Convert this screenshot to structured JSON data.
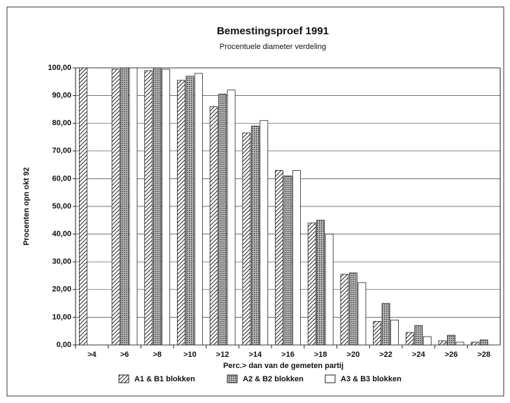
{
  "chart_data": {
    "type": "bar",
    "title": "Bemestingsproef 1991",
    "subtitle": "Procentuele diameter verdeling",
    "y_label": "Procenten opn okt 92",
    "x_label": "Perc.> dan van de gemeten partij",
    "categories": [
      ">4",
      ">6",
      ">8",
      ">10",
      ">12",
      ">14",
      ">16",
      ">18",
      ">20",
      ">22",
      ">24",
      ">26",
      ">28"
    ],
    "series": [
      {
        "name": "A1 & B1 blokken",
        "color": "#222222",
        "pattern": "hatch",
        "values": [
          100,
          99.5,
          99,
          95.5,
          86,
          76.5,
          63,
          44,
          25.5,
          8.5,
          4.5,
          1.5,
          1
        ]
      },
      {
        "name": "A2 & B2 blokken",
        "color": "#222222",
        "pattern": "dots",
        "values": [
          null,
          100,
          100,
          97,
          90.5,
          79,
          61,
          45,
          26,
          15,
          7,
          3.5,
          1.8
        ]
      },
      {
        "name": "A3 & B3 blokken",
        "color": "#222222",
        "pattern": "none",
        "values": [
          null,
          100,
          99.5,
          98,
          92,
          81,
          63,
          40,
          22.5,
          9,
          3,
          1,
          null
        ]
      }
    ],
    "ylim": [
      0,
      100
    ],
    "yticks": [
      {
        "value": 0,
        "label": "0,00"
      },
      {
        "value": 10,
        "label": "10,00"
      },
      {
        "value": 20,
        "label": "20,00"
      },
      {
        "value": 30,
        "label": "30,00"
      },
      {
        "value": 40,
        "label": "40,00"
      },
      {
        "value": 50,
        "label": "50,00"
      },
      {
        "value": 60,
        "label": "60,00"
      },
      {
        "value": 70,
        "label": "70,00"
      },
      {
        "value": 80,
        "label": "80,00"
      },
      {
        "value": 90,
        "label": "90,00"
      },
      {
        "value": 100,
        "label": "100,00"
      }
    ],
    "grid": true
  }
}
